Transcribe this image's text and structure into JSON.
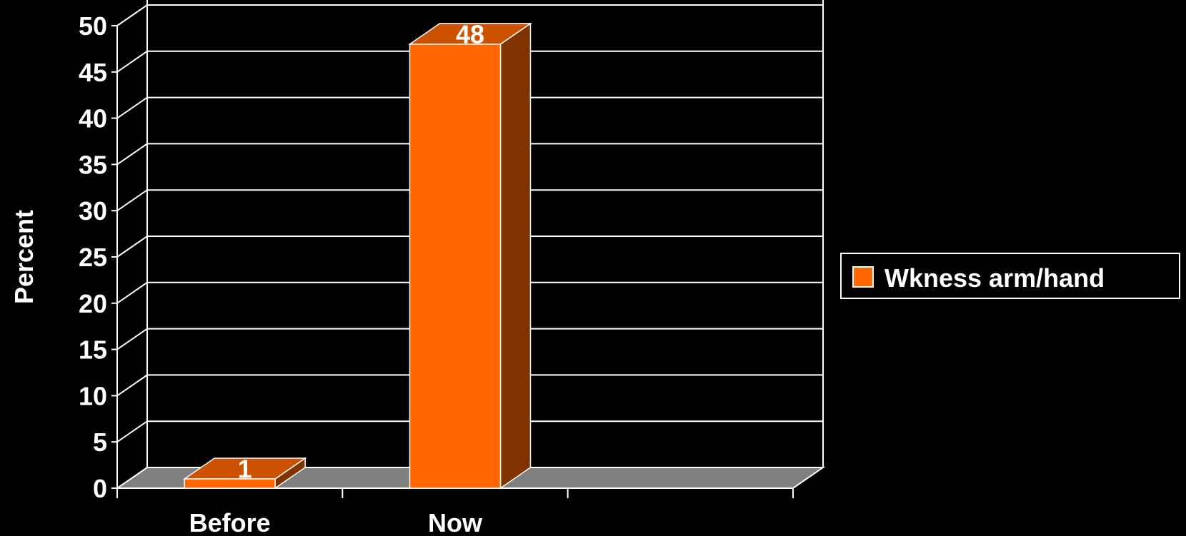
{
  "chart_data": {
    "type": "bar",
    "title": "",
    "xlabel": "",
    "ylabel": "Percent",
    "categories": [
      "Before",
      "Now",
      ""
    ],
    "series": [
      {
        "name": "Wkness arm/hand",
        "values": [
          1,
          48,
          null
        ],
        "color": "#ff6600"
      }
    ],
    "data_labels": [
      "1",
      "48",
      ""
    ],
    "ylim": [
      0,
      50
    ],
    "yticks": [
      0,
      5,
      10,
      15,
      20,
      25,
      30,
      35,
      40,
      45,
      50
    ],
    "grid": true,
    "legend": "right",
    "three_d": true,
    "colors": {
      "background": "#000000",
      "bar_front": "#ff6600",
      "bar_top": "#cc5200",
      "bar_side": "#803300",
      "floor": "#808080",
      "lines": "#ffffff",
      "text": "#ffffff"
    }
  }
}
